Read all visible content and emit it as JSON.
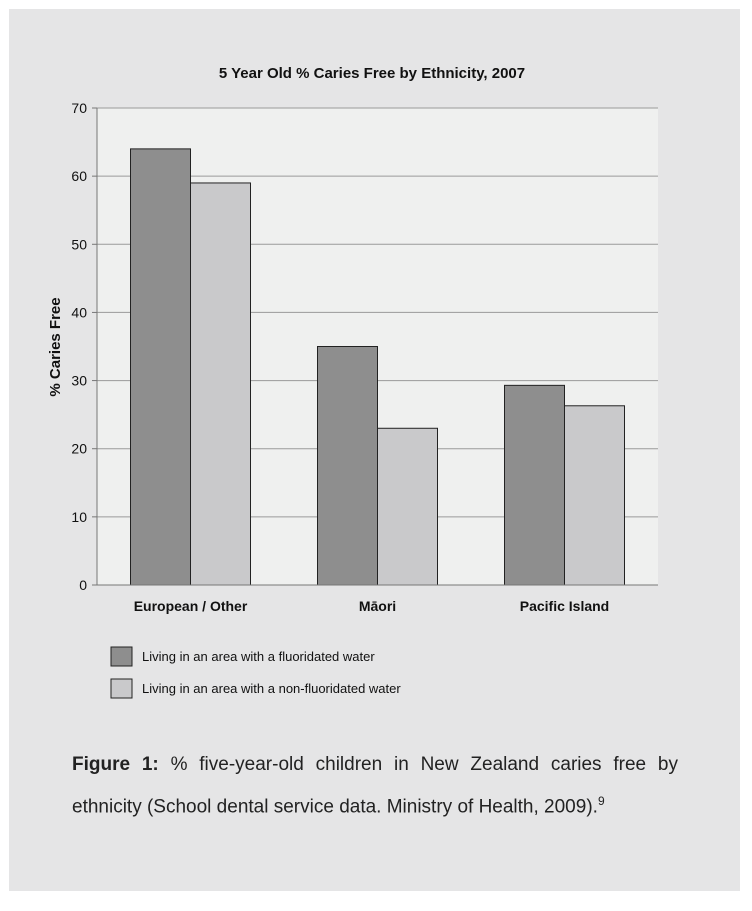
{
  "colors": {
    "fluoridated": "#8e8e8e",
    "non_fluoridated": "#c9c9cb",
    "plot_background": "#eff0ef",
    "panel_background": "#e5e5e6"
  },
  "chart_data": {
    "type": "bar",
    "title": "5 Year Old % Caries Free by Ethnicity, 2007",
    "xlabel": "",
    "ylabel": "% Caries Free",
    "ylim": [
      0,
      70
    ],
    "yticks": [
      "0",
      "10",
      "20",
      "30",
      "40",
      "50",
      "60",
      "70"
    ],
    "grid": true,
    "legend_position": "bottom-left",
    "categories": [
      "European / Other",
      "Māori",
      "Pacific Island"
    ],
    "series": [
      {
        "name": "Living in an area with a fluoridated water",
        "values": [
          64,
          35,
          29.3
        ]
      },
      {
        "name": "Living in an area with a non-fluoridated water",
        "values": [
          59,
          23,
          26.3
        ]
      }
    ]
  },
  "caption": {
    "label": "Figure 1:",
    "text": " % five-year-old children in New Zealand caries free by ethnicity (School dental service data. Ministry of Health, 2009).",
    "superscript": "9"
  }
}
